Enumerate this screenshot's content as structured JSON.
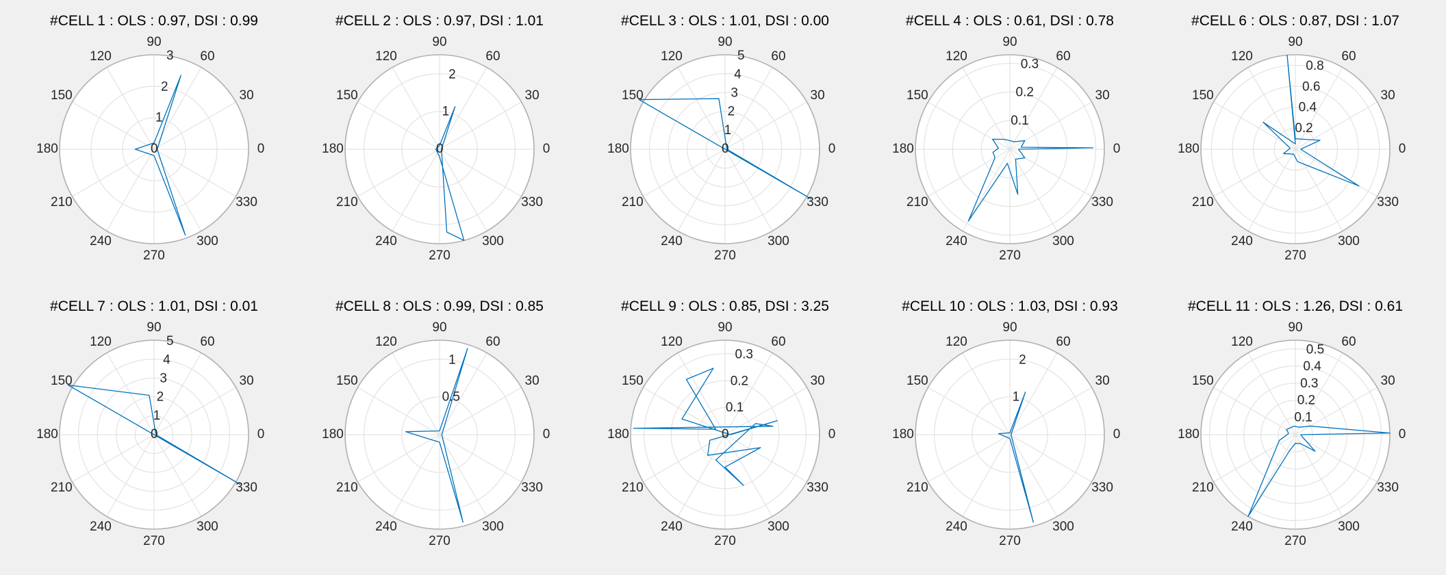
{
  "chart_data": [
    {
      "type": "polar-line",
      "title": "#CELL 1 : OLS : 0.97, DSI : 0.99",
      "angle_ticks": [
        "0",
        "30",
        "60",
        "90",
        "120",
        "150",
        "180",
        "210",
        "240",
        "270",
        "300",
        "330"
      ],
      "r_ticks": [
        "0",
        "1",
        "2",
        "3"
      ],
      "rlim": [
        0,
        3
      ],
      "series": [
        {
          "color": "#0072BD",
          "theta": [
            0,
            70,
            90,
            180,
            270,
            290,
            0
          ],
          "r": [
            0.1,
            2.5,
            0.2,
            0.6,
            0.2,
            2.9,
            0.1
          ]
        }
      ]
    },
    {
      "type": "polar-line",
      "title": "#CELL 2 : OLS : 0.97, DSI : 1.01",
      "angle_ticks": [
        "0",
        "30",
        "60",
        "90",
        "120",
        "150",
        "180",
        "210",
        "240",
        "270",
        "300",
        "330"
      ],
      "r_ticks": [
        "0",
        "1",
        "2"
      ],
      "rlim": [
        0,
        2.5
      ],
      "series": [
        {
          "color": "#0072BD",
          "theta": [
            0,
            70,
            90,
            180,
            270,
            285,
            275,
            0
          ],
          "r": [
            0.05,
            1.2,
            0.1,
            0.1,
            0.2,
            2.5,
            2.2,
            0.05
          ]
        }
      ]
    },
    {
      "type": "polar-line",
      "title": "#CELL 3 : OLS : 1.01, DSI : 0.00",
      "angle_ticks": [
        "0",
        "30",
        "60",
        "90",
        "120",
        "150",
        "180",
        "210",
        "240",
        "270",
        "300",
        "330"
      ],
      "r_ticks": [
        "0",
        "1",
        "2",
        "3",
        "4",
        "5"
      ],
      "rlim": [
        0,
        5
      ],
      "series": [
        {
          "color": "#0072BD",
          "theta": [
            0,
            97,
            150,
            330,
            0
          ],
          "r": [
            0.1,
            2.7,
            5.4,
            5.3,
            0.1
          ]
        }
      ]
    },
    {
      "type": "polar-line",
      "title": "#CELL 4 : OLS : 0.61, DSI : 0.78",
      "angle_ticks": [
        "0",
        "30",
        "60",
        "90",
        "120",
        "150",
        "180",
        "210",
        "240",
        "270",
        "300",
        "330"
      ],
      "r_ticks": [
        "0.1",
        "0.2",
        "0.3"
      ],
      "rlim": [
        0,
        0.33
      ],
      "series": [
        {
          "color": "#0072BD",
          "theta": [
            0,
            1,
            10,
            30,
            60,
            90,
            120,
            150,
            175,
            190,
            210,
            240,
            260,
            280,
            300,
            330,
            0
          ],
          "r": [
            0.03,
            0.29,
            0.04,
            0.06,
            0.03,
            0.03,
            0.04,
            0.07,
            0.04,
            0.06,
            0.06,
            0.29,
            0.05,
            0.16,
            0.04,
            0.06,
            0.03
          ]
        }
      ]
    },
    {
      "type": "polar-line",
      "title": "#CELL 6 : OLS : 0.87, DSI : 1.07",
      "angle_ticks": [
        "0",
        "30",
        "60",
        "90",
        "120",
        "150",
        "180",
        "210",
        "240",
        "270",
        "300",
        "330"
      ],
      "r_ticks": [
        "0.2",
        "0.4",
        "0.6",
        "0.8"
      ],
      "rlim": [
        0,
        0.9
      ],
      "series": [
        {
          "color": "#0072BD",
          "theta": [
            0,
            20,
            90,
            95,
            90,
            140,
            170,
            200,
            250,
            280,
            330,
            0
          ],
          "r": [
            0.05,
            0.25,
            0.1,
            0.9,
            0.05,
            0.4,
            0.05,
            0.12,
            0.05,
            0.12,
            0.7,
            0.05
          ]
        }
      ]
    },
    {
      "type": "polar-line",
      "title": "#CELL 7 : OLS : 1.01, DSI : 0.01",
      "angle_ticks": [
        "0",
        "30",
        "60",
        "90",
        "120",
        "150",
        "180",
        "210",
        "240",
        "270",
        "300",
        "330"
      ],
      "r_ticks": [
        "0",
        "1",
        "2",
        "3",
        "4",
        "5"
      ],
      "rlim": [
        0,
        5
      ],
      "series": [
        {
          "color": "#0072BD",
          "theta": [
            0,
            97,
            150,
            330,
            0
          ],
          "r": [
            0.1,
            2.1,
            5.4,
            5.3,
            0.1
          ]
        }
      ]
    },
    {
      "type": "polar-line",
      "title": "#CELL 8 : OLS : 0.99, DSI : 0.85",
      "angle_ticks": [
        "0",
        "30",
        "60",
        "90",
        "120",
        "150",
        "180",
        "210",
        "240",
        "270",
        "300",
        "330"
      ],
      "r_ticks": [
        "0.5",
        "1"
      ],
      "rlim": [
        0,
        1.25
      ],
      "series": [
        {
          "color": "#0072BD",
          "theta": [
            0,
            72,
            90,
            175,
            270,
            285,
            0
          ],
          "r": [
            0.03,
            1.2,
            0.05,
            0.45,
            0.1,
            1.2,
            0.03
          ]
        }
      ]
    },
    {
      "type": "polar-line",
      "title": "#CELL 9 : OLS : 0.85, DSI : 3.25",
      "angle_ticks": [
        "0",
        "30",
        "60",
        "90",
        "120",
        "150",
        "180",
        "210",
        "240",
        "270",
        "300",
        "330"
      ],
      "r_ticks": [
        "0",
        "0.1",
        "0.2",
        "0.3"
      ],
      "rlim": [
        0,
        0.35
      ],
      "series": [
        {
          "color": "#0072BD",
          "theta": [
            0,
            15,
            200,
            230,
            340,
            270,
            290,
            250,
            20,
            10,
            176,
            150,
            125,
            100,
            160,
            0
          ],
          "r": [
            0.02,
            0.2,
            0.06,
            0.1,
            0.14,
            0.12,
            0.2,
            0.1,
            0.12,
            0.18,
            0.34,
            0.04,
            0.25,
            0.25,
            0.17,
            0.02
          ]
        }
      ]
    },
    {
      "type": "polar-line",
      "title": "#CELL 10 : OLS : 1.03, DSI : 0.93",
      "angle_ticks": [
        "0",
        "30",
        "60",
        "90",
        "120",
        "150",
        "180",
        "210",
        "240",
        "270",
        "300",
        "330"
      ],
      "r_ticks": [
        "1",
        "2"
      ],
      "rlim": [
        0,
        2.5
      ],
      "series": [
        {
          "color": "#0072BD",
          "theta": [
            0,
            70,
            90,
            175,
            270,
            285,
            0
          ],
          "r": [
            0.03,
            1.2,
            0.05,
            0.3,
            0.1,
            2.4,
            0.03
          ]
        }
      ]
    },
    {
      "type": "polar-line",
      "title": "#CELL 11 : OLS : 1.26, DSI : 0.61",
      "angle_ticks": [
        "0",
        "30",
        "60",
        "90",
        "120",
        "150",
        "180",
        "210",
        "240",
        "270",
        "300",
        "330"
      ],
      "r_ticks": [
        "0.1",
        "0.2",
        "0.3",
        "0.4",
        "0.5"
      ],
      "rlim": [
        0,
        0.55
      ],
      "series": [
        {
          "color": "#0072BD",
          "theta": [
            0,
            1,
            30,
            60,
            100,
            150,
            170,
            200,
            240,
            250,
            270,
            300,
            320,
            0
          ],
          "r": [
            0.03,
            0.55,
            0.1,
            0.05,
            0.05,
            0.06,
            0.04,
            0.1,
            0.55,
            0.1,
            0.05,
            0.06,
            0.15,
            0.03
          ]
        }
      ]
    }
  ]
}
